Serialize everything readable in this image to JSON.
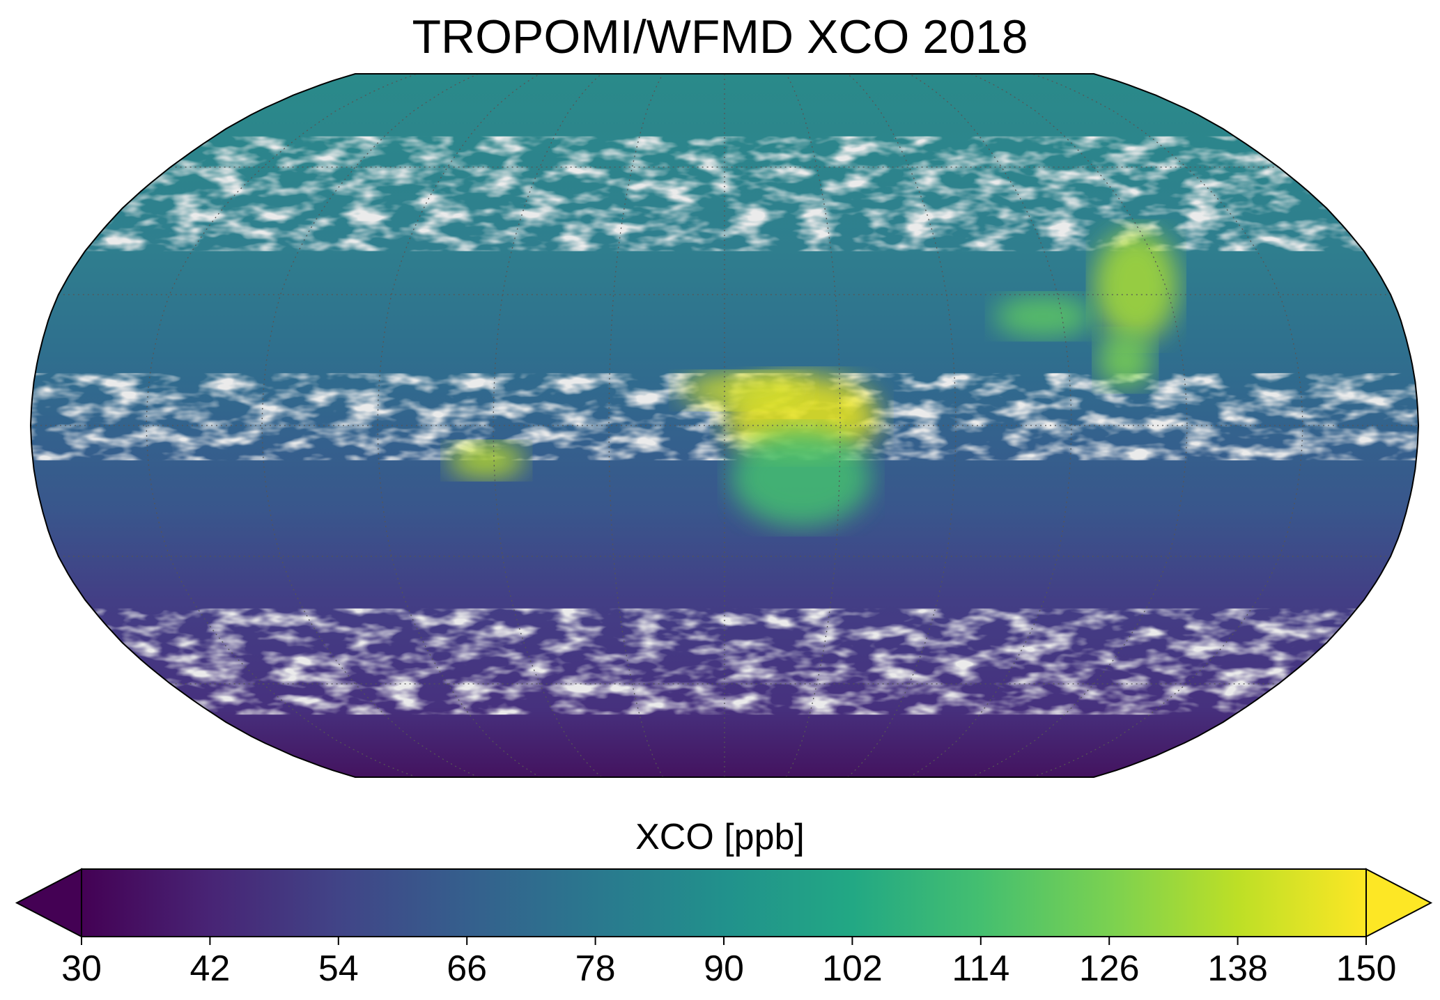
{
  "title": "TROPOMI/WFMD XCO 2018",
  "map": {
    "projection": "Robinson",
    "gridlines": "dotted",
    "missing_data_color": "#d3d3d3",
    "ocean_cloud_gaps": true,
    "hotspots": [
      {
        "region": "Central Africa",
        "level": "high"
      },
      {
        "region": "Eastern China",
        "level": "high"
      },
      {
        "region": "Amazon",
        "level": "high"
      },
      {
        "region": "South/Southeast Asia",
        "level": "elevated"
      }
    ]
  },
  "chart_data": {
    "type": "heatmap",
    "title": "TROPOMI/WFMD XCO 2018",
    "colorbar": {
      "label": "XCO [ppb]",
      "colormap": "viridis",
      "range": [
        30,
        150
      ],
      "extend": "both",
      "ticks": [
        "30",
        "42",
        "54",
        "66",
        "78",
        "90",
        "102",
        "114",
        "126",
        "138",
        "150"
      ]
    }
  }
}
